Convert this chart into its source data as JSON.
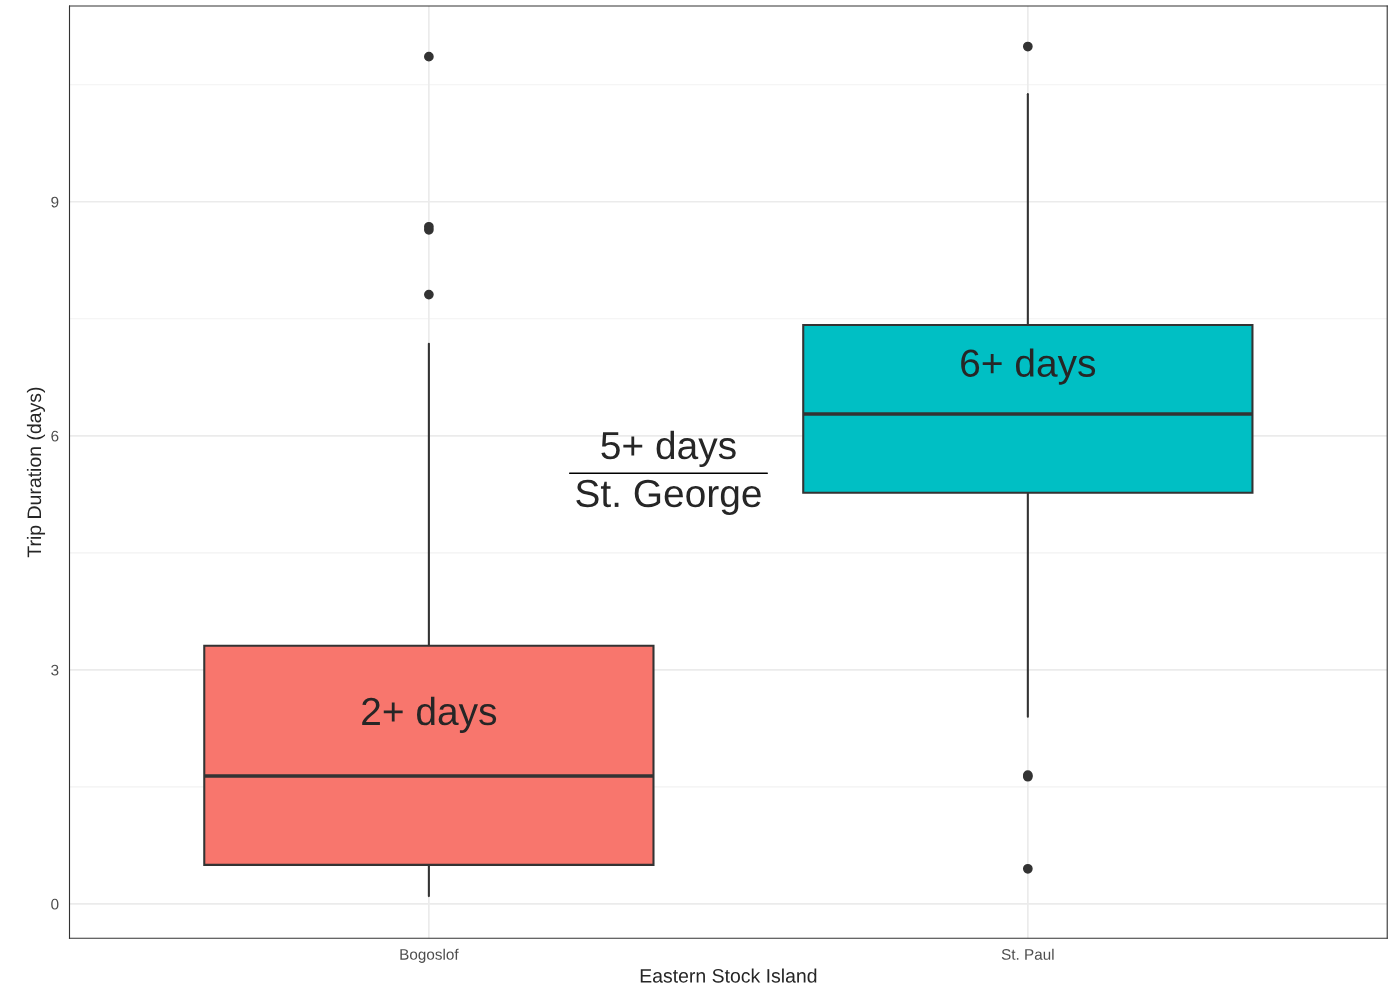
{
  "chart_data": {
    "type": "box",
    "xlabel": "Eastern Stock Island",
    "ylabel": "Trip Duration (days)",
    "categories": [
      "Bogoslof",
      "St. Paul"
    ],
    "colors": [
      "#f8766d",
      "#00bfc4"
    ],
    "boxes": [
      {
        "low": 0.1,
        "q1": 0.5,
        "median": 1.64,
        "q3": 3.31,
        "high": 7.18,
        "outliers": [
          7.81,
          8.64,
          8.68,
          10.86
        ]
      },
      {
        "low": 2.4,
        "q1": 5.27,
        "median": 6.28,
        "q3": 7.42,
        "high": 10.38,
        "outliers": [
          10.99,
          1.63,
          1.65,
          0.45
        ]
      }
    ],
    "ylim": [
      -0.44,
      11.51
    ],
    "yticks": [
      0,
      3,
      6,
      9
    ],
    "grid": true,
    "annotations": [
      "2+ days",
      "6+ days",
      "5+ days",
      "St. George"
    ]
  }
}
